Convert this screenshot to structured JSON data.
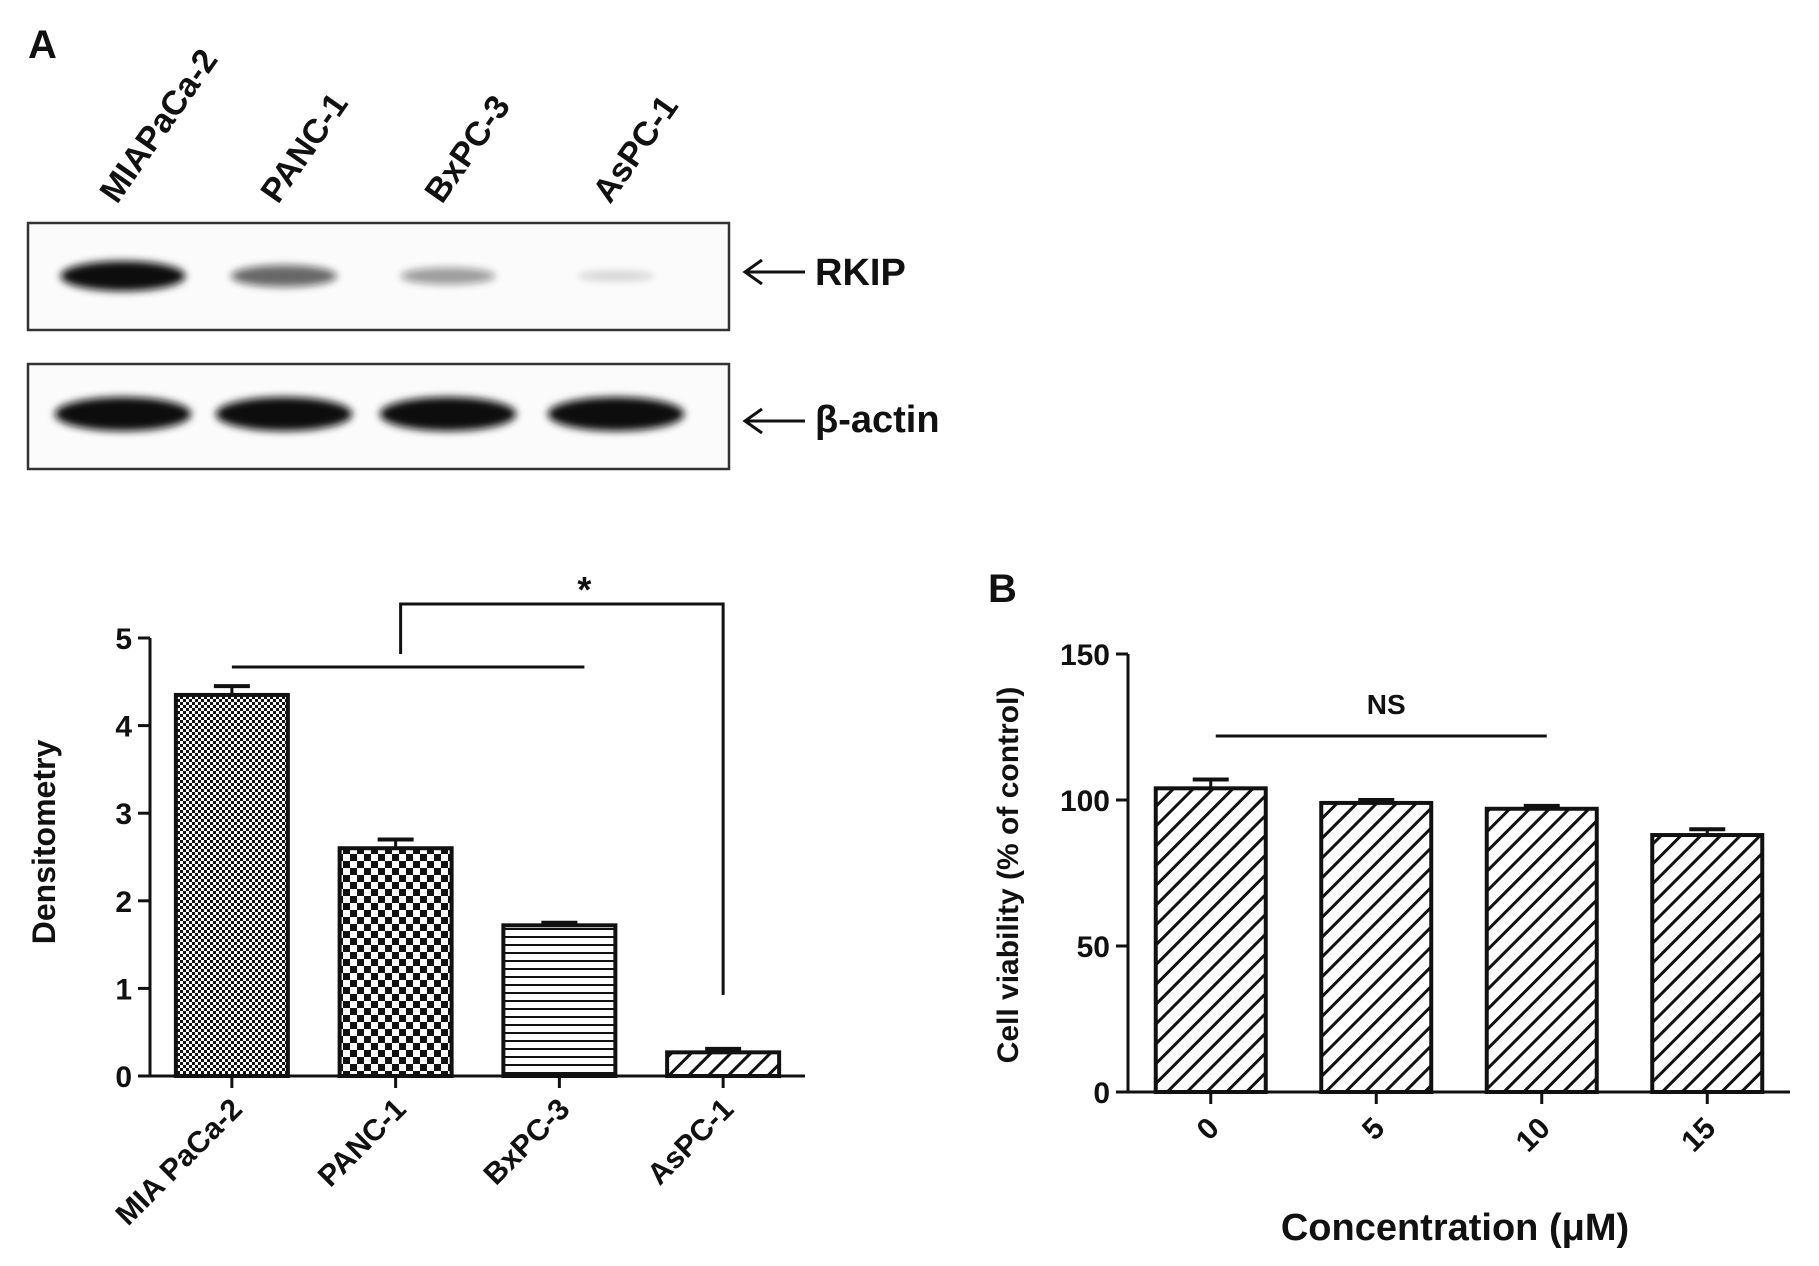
{
  "panel_a": {
    "label": "A",
    "blot": {
      "lanes": [
        "MIAPaCa-2",
        "PANC-1",
        "BxPC-3",
        "AsPC-1"
      ],
      "bands": [
        {
          "label": "RKIP",
          "intensity": [
            1.0,
            0.62,
            0.4,
            0.06
          ]
        },
        {
          "label": "β-actin",
          "intensity": [
            1.0,
            1.0,
            1.0,
            1.0
          ]
        }
      ]
    }
  },
  "panel_b": {
    "label": "B"
  },
  "chart_data": [
    {
      "type": "bar",
      "title": "",
      "xlabel": "",
      "ylabel": "Densitometry",
      "categories": [
        "MIA PaCa-2",
        "PANC-1",
        "BxPC-3",
        "AsPC-1"
      ],
      "values": [
        4.35,
        2.6,
        1.72,
        0.27
      ],
      "errors": [
        0.1,
        0.1,
        0.03,
        0.04
      ],
      "patterns": [
        "fine-check",
        "checker",
        "horizontal-lines",
        "diagonal-lines"
      ],
      "ylim": [
        0,
        5
      ],
      "yticks": [
        "0",
        "1",
        "2",
        "3",
        "4",
        "5"
      ],
      "grid": false,
      "annotation": "*"
    },
    {
      "type": "bar",
      "title": "",
      "xlabel": "Concentration (μM)",
      "ylabel": "Cell viability (% of control)",
      "categories": [
        "0",
        "5",
        "10",
        "15"
      ],
      "values": [
        104,
        99,
        97,
        88
      ],
      "errors": [
        3,
        1,
        1,
        2
      ],
      "patterns": [
        "diagonal-lines",
        "diagonal-lines",
        "diagonal-lines",
        "diagonal-lines"
      ],
      "ylim": [
        0,
        150
      ],
      "yticks": [
        "0",
        "50",
        "100",
        "150"
      ],
      "grid": false,
      "annotation": "NS"
    }
  ]
}
